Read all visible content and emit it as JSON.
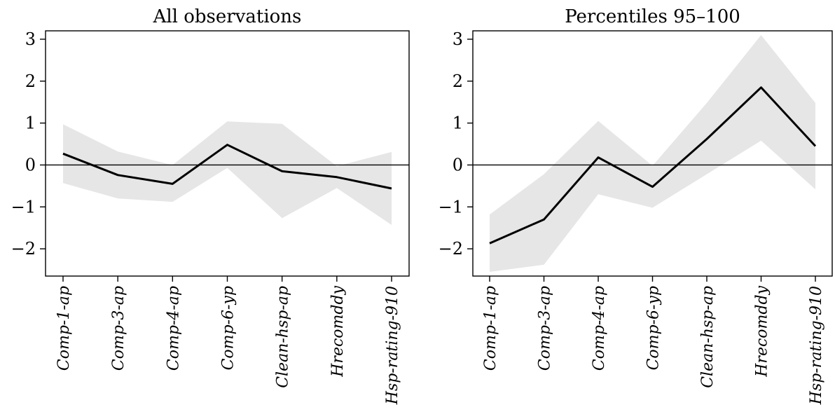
{
  "chart_data": [
    {
      "type": "line",
      "title": "All observations",
      "categories": [
        "Comp-1-ap",
        "Comp-3-ap",
        "Comp-4-ap",
        "Comp-6-yp",
        "Clean-hsp-ap",
        "Hrecomddy",
        "Hsp-rating-910"
      ],
      "series": [
        {
          "values": [
            0.27,
            -0.24,
            -0.45,
            0.48,
            -0.15,
            -0.29,
            -0.56
          ],
          "lower": [
            -0.43,
            -0.8,
            -0.88,
            -0.07,
            -1.27,
            -0.55,
            -1.43
          ],
          "upper": [
            0.97,
            0.32,
            0.0,
            1.04,
            0.98,
            -0.03,
            0.31
          ]
        }
      ],
      "ylim": [
        -2.65,
        3.2
      ],
      "yticks": [
        -2,
        -1,
        0,
        1,
        2,
        3
      ],
      "ytick_labels": [
        "−2",
        "−1",
        "0",
        "1",
        "2",
        "3"
      ],
      "zero_line": true,
      "grid": false,
      "colors": {
        "line": "#000000",
        "band": "#e6e6e6"
      }
    },
    {
      "type": "line",
      "title": "Percentiles 95–100",
      "categories": [
        "Comp-1-ap",
        "Comp-3-ap",
        "Comp-4-ap",
        "Comp-6-yp",
        "Clean-hsp-ap",
        "Hrecomddy",
        "Hsp-rating-910"
      ],
      "series": [
        {
          "values": [
            -1.87,
            -1.3,
            0.18,
            -0.52,
            0.62,
            1.85,
            0.45
          ],
          "lower": [
            -2.55,
            -2.38,
            -0.7,
            -1.02,
            -0.22,
            0.58,
            -0.58
          ],
          "upper": [
            -1.18,
            -0.22,
            1.05,
            -0.02,
            1.48,
            3.1,
            1.48
          ]
        }
      ],
      "ylim": [
        -2.65,
        3.2
      ],
      "yticks": [
        -2,
        -1,
        0,
        1,
        2,
        3
      ],
      "ytick_labels": [
        "−2",
        "−1",
        "0",
        "1",
        "2",
        "3"
      ],
      "zero_line": true,
      "grid": false,
      "colors": {
        "line": "#000000",
        "band": "#e6e6e6"
      }
    }
  ]
}
